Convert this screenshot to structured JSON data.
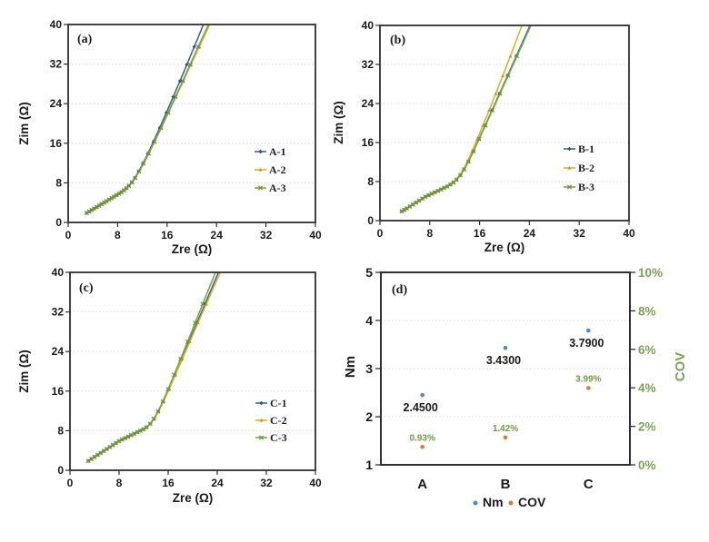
{
  "figure": {
    "background": "#ffffff",
    "description_colors": {
      "frame": "#2f2f2f",
      "grid": "#d9d9d9",
      "text_dark": "#1a1a1a",
      "axis_green": "#79a554",
      "value_green": "#6d9c43",
      "legend_text": "#1c1c2e"
    }
  },
  "chart_data": [
    {
      "id": "a",
      "type": "line",
      "panel_label": "(a)",
      "xlabel": "Zre  (Ω)",
      "ylabel": "Zim  (Ω)",
      "xlim": [
        0,
        40
      ],
      "ylim": [
        0,
        40
      ],
      "xticks": [
        0,
        8,
        16,
        24,
        32,
        40
      ],
      "yticks": [
        0,
        8,
        16,
        24,
        32,
        40
      ],
      "grid": "horizontal-dotted",
      "legend_position": "middle-right",
      "base_points": [
        [
          3.0,
          1.9
        ],
        [
          3.4,
          2.2
        ],
        [
          3.8,
          2.5
        ],
        [
          4.2,
          2.8
        ],
        [
          4.6,
          3.1
        ],
        [
          5.0,
          3.4
        ],
        [
          5.4,
          3.7
        ],
        [
          5.8,
          4.0
        ],
        [
          6.2,
          4.3
        ],
        [
          6.6,
          4.6
        ],
        [
          7.0,
          4.9
        ],
        [
          7.4,
          5.2
        ],
        [
          7.8,
          5.5
        ],
        [
          8.2,
          5.8
        ],
        [
          8.6,
          6.1
        ],
        [
          9.0,
          6.5
        ],
        [
          9.4,
          6.9
        ],
        [
          9.8,
          7.4
        ],
        [
          10.3,
          8.1
        ],
        [
          10.8,
          9.0
        ],
        [
          11.4,
          10.3
        ],
        [
          12.1,
          11.9
        ],
        [
          12.9,
          13.9
        ],
        [
          13.8,
          16.3
        ],
        [
          14.8,
          19.1
        ],
        [
          15.9,
          22.2
        ],
        [
          17.0,
          25.4
        ],
        [
          18.1,
          28.6
        ],
        [
          19.2,
          31.9
        ],
        [
          20.4,
          35.5
        ],
        [
          21.9,
          40.0
        ]
      ],
      "series": [
        {
          "name": "A-1",
          "color": "#3a66a7",
          "marker_color": "#2d4f85",
          "marker": "diamond",
          "dx": 0
        },
        {
          "name": "A-2",
          "color": "#ddb32b",
          "marker_color": "#c39f1e",
          "marker": "triangle",
          "dx": 1.0
        },
        {
          "name": "A-3",
          "color": "#7ba844",
          "marker_color": "#69953a",
          "marker": "cross",
          "dx": 0.8
        }
      ]
    },
    {
      "id": "b",
      "type": "line",
      "panel_label": "(b)",
      "xlabel": "Zre  (Ω)",
      "ylabel": "Zim  (Ω)",
      "xlim": [
        0,
        40
      ],
      "ylim": [
        0,
        40
      ],
      "xticks": [
        0,
        8,
        16,
        24,
        32,
        40
      ],
      "yticks": [
        0,
        8,
        16,
        24,
        32,
        40
      ],
      "grid": "horizontal-dotted",
      "legend_position": "middle-right",
      "base_points": [
        [
          3.5,
          1.9
        ],
        [
          3.9,
          2.2
        ],
        [
          4.3,
          2.5
        ],
        [
          4.8,
          2.9
        ],
        [
          5.3,
          3.3
        ],
        [
          5.8,
          3.7
        ],
        [
          6.3,
          4.1
        ],
        [
          6.8,
          4.5
        ],
        [
          7.3,
          4.9
        ],
        [
          7.8,
          5.2
        ],
        [
          8.3,
          5.5
        ],
        [
          8.8,
          5.8
        ],
        [
          9.3,
          6.1
        ],
        [
          9.8,
          6.4
        ],
        [
          10.3,
          6.7
        ],
        [
          10.8,
          7.0
        ],
        [
          11.3,
          7.4
        ],
        [
          11.8,
          7.8
        ],
        [
          12.3,
          8.4
        ],
        [
          12.9,
          9.3
        ],
        [
          13.5,
          10.5
        ],
        [
          14.2,
          12.1
        ],
        [
          15.0,
          14.2
        ],
        [
          15.9,
          16.7
        ],
        [
          16.9,
          19.5
        ],
        [
          18.0,
          22.6
        ],
        [
          19.2,
          26.0
        ],
        [
          20.5,
          29.7
        ],
        [
          21.9,
          33.7
        ],
        [
          24.1,
          40.0
        ]
      ],
      "series": [
        {
          "name": "B-1",
          "color": "#3a66a7",
          "marker_color": "#2d4f85",
          "marker": "diamond",
          "dx": 0
        },
        {
          "name": "B-2",
          "color": "#ddb32b",
          "marker_color": "#c39f1e",
          "marker": "triangle",
          "dx": -1.3
        },
        {
          "name": "B-3",
          "color": "#7ba844",
          "marker_color": "#69953a",
          "marker": "cross",
          "dx": 0.15
        }
      ]
    },
    {
      "id": "c",
      "type": "line",
      "panel_label": "(c)",
      "xlabel": "Zre  (Ω)",
      "ylabel": "Zim  (Ω)",
      "xlim": [
        0,
        40
      ],
      "ylim": [
        0,
        40
      ],
      "xticks": [
        0,
        8,
        16,
        24,
        32,
        40
      ],
      "yticks": [
        0,
        8,
        16,
        24,
        32,
        40
      ],
      "grid": "horizontal-dotted",
      "legend_position": "middle-right",
      "base_points": [
        [
          3.0,
          1.9
        ],
        [
          3.5,
          2.3
        ],
        [
          4.0,
          2.7
        ],
        [
          4.5,
          3.1
        ],
        [
          5.0,
          3.5
        ],
        [
          5.5,
          3.9
        ],
        [
          6.0,
          4.3
        ],
        [
          6.5,
          4.7
        ],
        [
          7.0,
          5.1
        ],
        [
          7.5,
          5.5
        ],
        [
          8.0,
          5.9
        ],
        [
          8.5,
          6.2
        ],
        [
          9.0,
          6.5
        ],
        [
          9.5,
          6.8
        ],
        [
          10.0,
          7.1
        ],
        [
          10.5,
          7.4
        ],
        [
          11.0,
          7.7
        ],
        [
          11.5,
          8.0
        ],
        [
          12.0,
          8.3
        ],
        [
          12.5,
          8.7
        ],
        [
          13.1,
          9.4
        ],
        [
          13.7,
          10.4
        ],
        [
          14.4,
          11.9
        ],
        [
          15.2,
          13.9
        ],
        [
          16.1,
          16.4
        ],
        [
          17.1,
          19.3
        ],
        [
          18.2,
          22.5
        ],
        [
          19.4,
          26.0
        ],
        [
          20.7,
          29.8
        ],
        [
          22.0,
          33.6
        ],
        [
          24.2,
          40.0
        ]
      ],
      "series": [
        {
          "name": "C-1",
          "color": "#3a66a7",
          "marker_color": "#2d4f85",
          "marker": "diamond",
          "dx": 0
        },
        {
          "name": "C-2",
          "color": "#ddb32b",
          "marker_color": "#c39f1e",
          "marker": "triangle",
          "dx": 0.3
        },
        {
          "name": "C-3",
          "color": "#7ba844",
          "marker_color": "#69953a",
          "marker": "cross",
          "dx": -0.5
        }
      ]
    },
    {
      "id": "d",
      "type": "scatter",
      "panel_label": "(d)",
      "categories": [
        "A",
        "B",
        "C"
      ],
      "left_axis": {
        "label": "Nm",
        "range": [
          1,
          5
        ],
        "ticks": [
          1,
          2,
          3,
          4,
          5
        ],
        "color": "#1a1a1a"
      },
      "right_axis": {
        "label": "COV",
        "range": [
          0,
          10
        ],
        "ticks": [
          "0%",
          "2%",
          "4%",
          "6%",
          "8%",
          "10%"
        ],
        "tick_values": [
          0,
          2,
          4,
          6,
          8,
          10
        ],
        "color": "#79a554"
      },
      "grid": "horizontal-dotted",
      "grid_left_values": [
        2,
        3,
        4
      ],
      "series": [
        {
          "name": "Nm",
          "axis": "left",
          "color": "#4e8bc4",
          "values": [
            2.45,
            3.43,
            3.79
          ],
          "data_labels": [
            "2.4500",
            "3.4300",
            "3.7900"
          ],
          "label_color": "#1a1a1a"
        },
        {
          "name": "COV",
          "axis": "right",
          "color": "#e0772e",
          "values": [
            0.93,
            1.42,
            3.99
          ],
          "data_labels": [
            "0.93%",
            "1.42%",
            "3.99%"
          ],
          "label_color": "#6d9c43"
        }
      ],
      "legend": [
        "Nm",
        "COV"
      ],
      "legend_position": "bottom-center"
    }
  ]
}
